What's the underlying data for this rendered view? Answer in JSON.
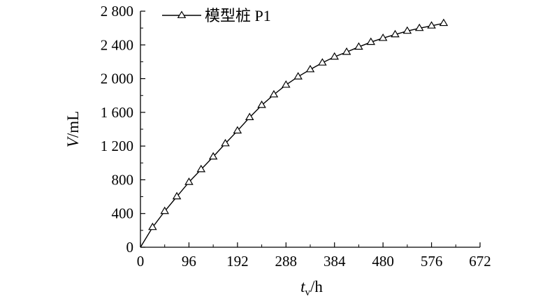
{
  "chart_data": {
    "type": "line",
    "xlabel": {
      "main": "t",
      "sub": "v",
      "unit": "/h"
    },
    "ylabel": {
      "main": "V",
      "unit": "/mL"
    },
    "xlim": [
      0,
      672
    ],
    "ylim": [
      0,
      2800
    ],
    "x_ticks": [
      0,
      96,
      192,
      288,
      384,
      480,
      576,
      672
    ],
    "x_tick_labels": [
      "0",
      "96",
      "192",
      "288",
      "384",
      "480",
      "576",
      "672"
    ],
    "y_ticks": [
      0,
      400,
      800,
      1200,
      1600,
      2000,
      2400,
      2800
    ],
    "y_tick_labels": [
      "0",
      "400",
      "800",
      "1 200",
      "1 600",
      "2 000",
      "2 400",
      "2 800"
    ],
    "grid": false,
    "legend_position": "top-left",
    "series": [
      {
        "name": "模型桩 P1",
        "marker": "open-triangle",
        "color": "#000000",
        "x": [
          0,
          24,
          48,
          72,
          96,
          120,
          144,
          168,
          192,
          216,
          240,
          264,
          288,
          312,
          336,
          360,
          384,
          408,
          432,
          456,
          480,
          504,
          528,
          552,
          576,
          600
        ],
        "y": [
          0,
          237,
          427,
          601,
          772,
          923,
          1073,
          1230,
          1382,
          1540,
          1685,
          1810,
          1925,
          2023,
          2108,
          2188,
          2258,
          2315,
          2376,
          2433,
          2480,
          2523,
          2565,
          2598,
          2627,
          2657
        ]
      }
    ]
  }
}
